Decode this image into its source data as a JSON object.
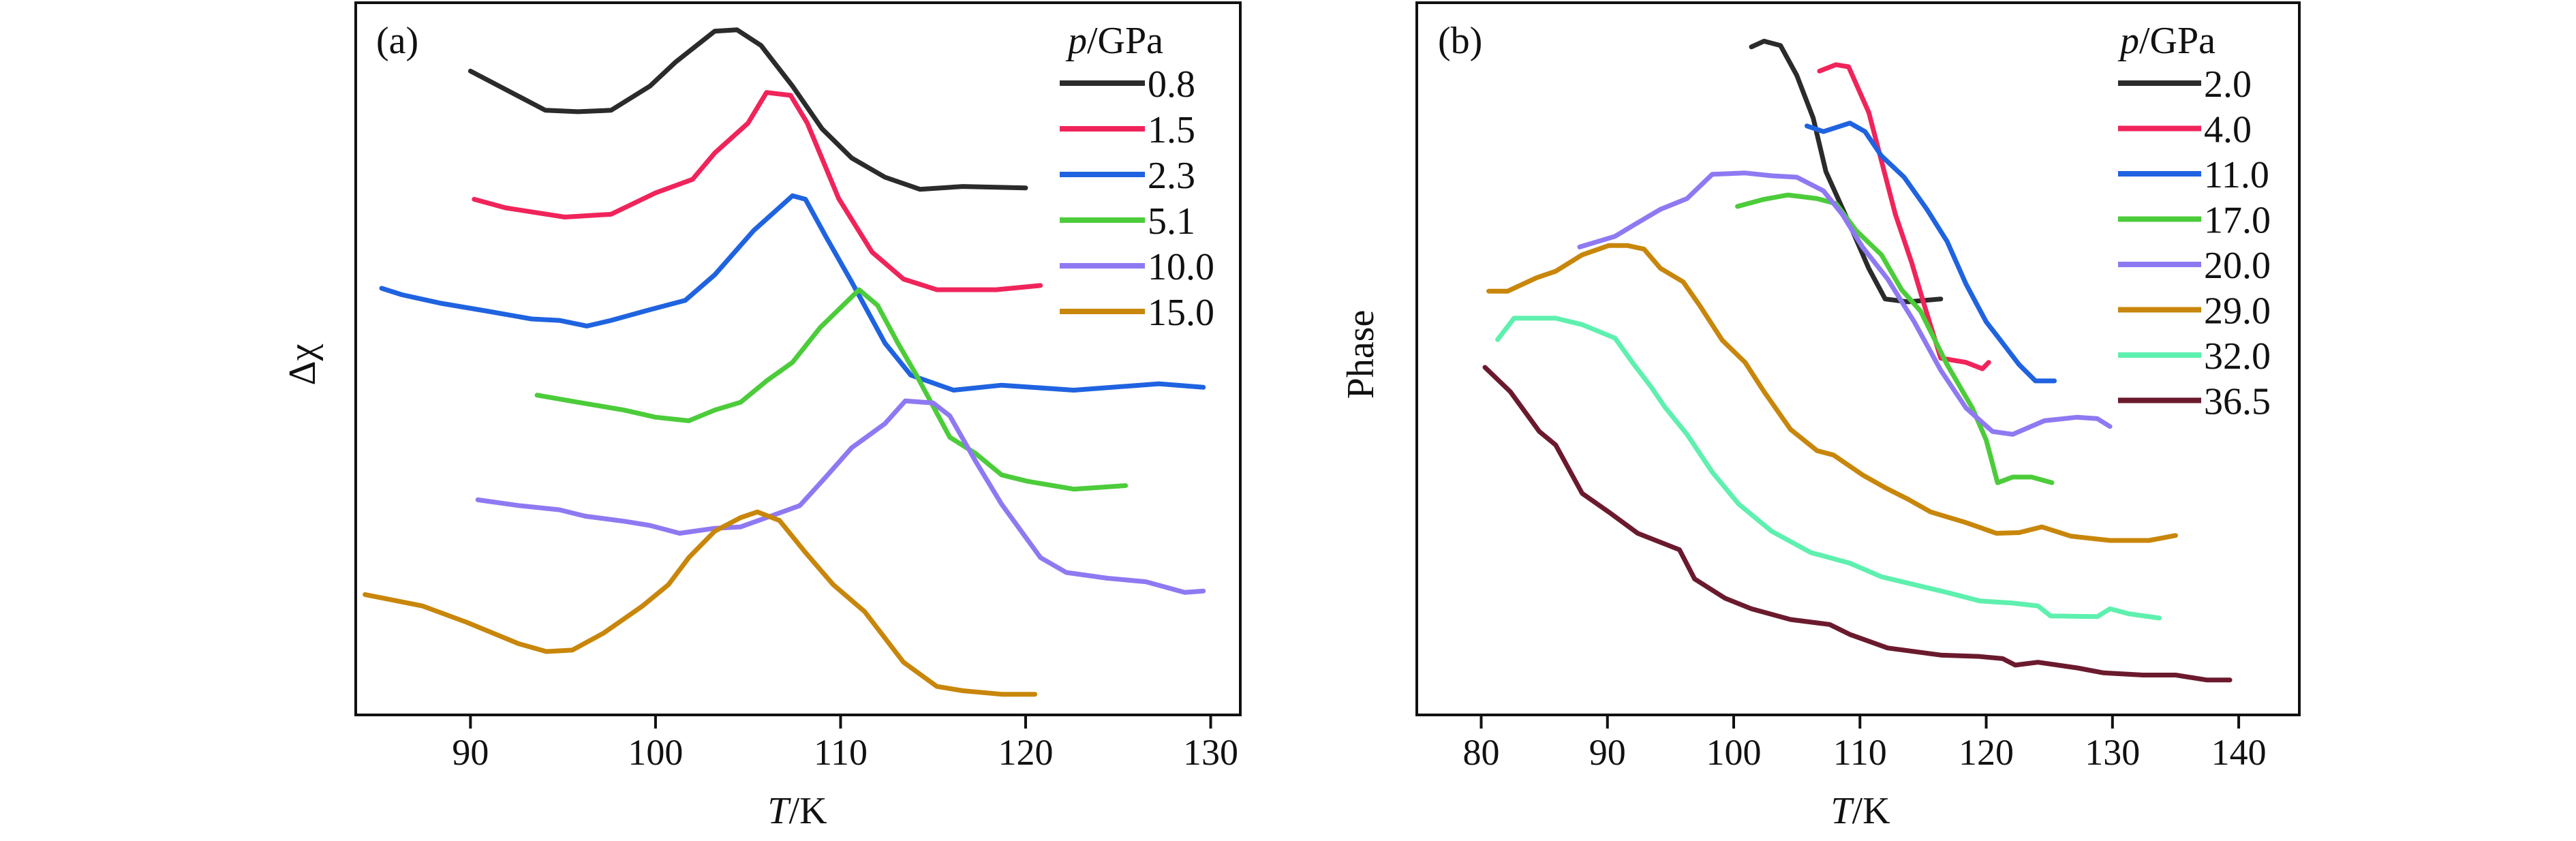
{
  "chart_data": [
    {
      "type": "line",
      "panel_label": "(a)",
      "xlabel_italic": "T",
      "xlabel_rest": "/K",
      "ylabel": "Δχ",
      "xlim": [
        83.8,
        131.6
      ],
      "ylim": [
        0,
        100
      ],
      "xticks": [
        90,
        100,
        110,
        120,
        130
      ],
      "grid": false,
      "legend": {
        "title_italic": "p",
        "title_rest": "/GPa",
        "placement": "top-right"
      },
      "series": [
        {
          "name": "0.8",
          "color": "#2b2b2b",
          "x": [
            90,
            94.05,
            95.8,
            97.6,
            99.7,
            101.1,
            103.2,
            104.4,
            105.7,
            107.4,
            109.0,
            110.6,
            112.4,
            114.3,
            116.6,
            120.0
          ],
          "y": [
            90.4,
            84.9,
            84.7,
            84.9,
            88.3,
            91.7,
            96.0,
            96.2,
            94.0,
            88.3,
            82.3,
            78.2,
            75.5,
            73.8,
            74.2,
            74.0
          ]
        },
        {
          "name": "1.5",
          "color": "#f0245a",
          "x": [
            90.2,
            91.9,
            95.1,
            97.6,
            100.0,
            102.0,
            103.2,
            105.0,
            106.0,
            107.3,
            108.2,
            109.9,
            111.7,
            113.4,
            115.2,
            118.4,
            120.8
          ],
          "y": [
            72.4,
            71.2,
            69.9,
            70.3,
            73.3,
            75.2,
            78.9,
            83.1,
            87.4,
            87.0,
            83.1,
            72.5,
            65.0,
            61.2,
            59.7,
            59.7,
            60.3
          ]
        },
        {
          "name": "2.3",
          "color": "#1f63e0",
          "x": [
            85.2,
            86.3,
            88.4,
            90.9,
            93.3,
            94.8,
            96.3,
            97.6,
            99.7,
            101.6,
            103.2,
            105.3,
            107.4,
            108.1,
            109.2,
            110.6,
            112.4,
            113.8,
            116.1,
            118.7,
            122.6,
            127.2,
            129.6
          ],
          "y": [
            59.9,
            59.0,
            57.8,
            56.7,
            55.6,
            55.4,
            54.6,
            55.4,
            56.9,
            58.2,
            61.8,
            68.0,
            72.9,
            72.4,
            67.2,
            60.8,
            52.2,
            47.7,
            45.6,
            46.3,
            45.6,
            46.5,
            46.0
          ]
        },
        {
          "name": "5.1",
          "color": "#4ccc3a",
          "x": [
            93.6,
            95.8,
            98.3,
            100.0,
            101.8,
            103.2,
            104.6,
            106.0,
            107.4,
            108.9,
            111.0,
            112.0,
            113.1,
            114.1,
            115.9,
            117.3,
            118.7,
            120.1,
            122.6,
            125.4
          ],
          "y": [
            44.9,
            43.9,
            42.8,
            41.8,
            41.3,
            42.8,
            43.9,
            46.9,
            49.5,
            54.4,
            59.7,
            57.5,
            52.2,
            47.7,
            39.0,
            36.7,
            33.7,
            32.8,
            31.7,
            32.2
          ]
        },
        {
          "name": "10.0",
          "color": "#8f79f2",
          "x": [
            90.4,
            92.6,
            94.8,
            96.2,
            98.3,
            99.7,
            101.3,
            103.2,
            104.6,
            106.0,
            107.8,
            109.2,
            110.6,
            112.4,
            113.5,
            115.0,
            115.9,
            117.3,
            118.7,
            120.8,
            122.2,
            124.4,
            126.5,
            128.6,
            129.6
          ],
          "y": [
            30.2,
            29.4,
            28.8,
            27.9,
            27.2,
            26.6,
            25.5,
            26.2,
            26.4,
            27.7,
            29.4,
            33.4,
            37.5,
            40.9,
            44.1,
            43.8,
            42.0,
            35.6,
            29.6,
            22.1,
            20.0,
            19.2,
            18.7,
            17.2,
            17.4
          ]
        },
        {
          "name": "15.0",
          "color": "#c8860a",
          "x": [
            84.3,
            87.4,
            89.8,
            92.6,
            94.1,
            95.5,
            97.2,
            99.3,
            100.7,
            101.8,
            103.2,
            104.6,
            105.5,
            106.7,
            108.1,
            109.6,
            111.3,
            113.4,
            115.2,
            116.6,
            118.7,
            120.5
          ],
          "y": [
            16.9,
            15.3,
            13.0,
            10.0,
            8.9,
            9.1,
            11.5,
            15.3,
            18.3,
            22.1,
            25.8,
            27.7,
            28.5,
            27.3,
            22.8,
            18.3,
            14.5,
            7.4,
            4.0,
            3.4,
            2.9,
            2.9
          ]
        }
      ]
    },
    {
      "type": "line",
      "panel_label": "(b)",
      "xlabel_italic": "T",
      "xlabel_rest": "/K",
      "ylabel": "Phase",
      "xlim": [
        74.9,
        144.8
      ],
      "ylim": [
        0,
        100
      ],
      "xticks": [
        80,
        90,
        100,
        110,
        120,
        130,
        140
      ],
      "grid": false,
      "legend": {
        "title_italic": "p",
        "title_rest": "/GPa",
        "placement": "top-right"
      },
      "series": [
        {
          "name": "2.0",
          "color": "#2b2b2b",
          "x": [
            101.4,
            102.4,
            103.7,
            105.0,
            106.3,
            107.3,
            109.2,
            110.7,
            112.0,
            113.8,
            116.4
          ],
          "y": [
            93.8,
            94.6,
            94.0,
            89.8,
            83.8,
            76.3,
            68.8,
            62.7,
            58.4,
            58.0,
            58.4
          ]
        },
        {
          "name": "4.0",
          "color": "#f0245a",
          "x": [
            106.8,
            108.1,
            109.1,
            110.7,
            111.7,
            112.8,
            114.1,
            115.1,
            116.4,
            118.4,
            119.7,
            120.2
          ],
          "y": [
            90.4,
            91.3,
            91.0,
            84.6,
            77.8,
            70.3,
            63.5,
            57.5,
            50.1,
            49.5,
            48.6,
            49.5
          ]
        },
        {
          "name": "11.0",
          "color": "#1f63e0",
          "x": [
            105.8,
            107.1,
            109.2,
            110.4,
            111.7,
            113.5,
            115.3,
            116.9,
            118.4,
            120.0,
            121.0,
            122.6,
            123.9,
            125.4
          ],
          "y": [
            82.7,
            81.9,
            83.1,
            81.9,
            78.5,
            75.5,
            71.0,
            66.5,
            60.5,
            55.2,
            52.9,
            49.2,
            46.9,
            46.9
          ]
        },
        {
          "name": "17.0",
          "color": "#4ccc3a",
          "x": [
            100.3,
            102.4,
            104.3,
            106.6,
            108.1,
            109.7,
            111.7,
            113.3,
            114.8,
            116.9,
            118.9,
            120.0,
            120.9,
            122.1,
            123.6,
            125.2
          ],
          "y": [
            71.4,
            72.4,
            73.0,
            72.5,
            71.8,
            68.0,
            64.6,
            59.7,
            56.7,
            49.2,
            43.1,
            38.6,
            32.6,
            33.4,
            33.4,
            32.6
          ]
        },
        {
          "name": "20.0",
          "color": "#8f79f2",
          "x": [
            87.8,
            90.6,
            92.1,
            94.2,
            96.3,
            98.3,
            100.9,
            103.0,
            105.0,
            107.1,
            108.6,
            110.2,
            112.2,
            114.3,
            116.4,
            118.4,
            120.5,
            122.1,
            124.6,
            127.2,
            128.8,
            129.8
          ],
          "y": [
            65.7,
            67.2,
            68.8,
            71.0,
            72.5,
            75.9,
            76.1,
            75.7,
            75.5,
            73.6,
            70.3,
            65.7,
            61.2,
            55.2,
            48.4,
            43.1,
            39.8,
            39.4,
            41.3,
            41.8,
            41.6,
            40.5
          ]
        },
        {
          "name": "29.0",
          "color": "#c8860a",
          "x": [
            80.6,
            82.1,
            84.4,
            85.9,
            88.0,
            90.1,
            91.6,
            92.9,
            94.2,
            96.0,
            97.3,
            99.1,
            100.9,
            102.4,
            104.5,
            106.6,
            107.9,
            110.2,
            112.0,
            113.8,
            115.6,
            118.4,
            120.8,
            122.6,
            124.4,
            126.7,
            129.8,
            132.9,
            135.0
          ],
          "y": [
            59.5,
            59.5,
            61.4,
            62.3,
            64.6,
            65.9,
            65.9,
            65.4,
            62.7,
            60.8,
            57.5,
            52.6,
            49.5,
            45.4,
            40.1,
            37.1,
            36.5,
            33.7,
            31.9,
            30.3,
            28.5,
            27.0,
            25.5,
            25.6,
            26.4,
            25.1,
            24.5,
            24.5,
            25.2
          ]
        },
        {
          "name": "32.0",
          "color": "#5ef0ae",
          "x": [
            81.3,
            82.6,
            85.9,
            88.0,
            90.6,
            92.1,
            93.4,
            94.6,
            96.3,
            98.3,
            100.4,
            103.0,
            106.1,
            109.2,
            111.7,
            114.3,
            116.9,
            119.5,
            122.1,
            124.1,
            125.1,
            128.8,
            129.8,
            131.3,
            133.7
          ],
          "y": [
            52.7,
            55.7,
            55.7,
            54.8,
            52.9,
            49.2,
            46.2,
            43.1,
            39.4,
            34.1,
            29.6,
            25.8,
            22.8,
            21.3,
            19.4,
            18.3,
            17.2,
            16.0,
            15.7,
            15.3,
            13.9,
            13.8,
            14.9,
            14.2,
            13.6
          ]
        },
        {
          "name": "36.5",
          "color": "#6b1a2e",
          "x": [
            80.3,
            82.3,
            84.6,
            85.9,
            88.0,
            90.1,
            92.4,
            95.7,
            96.9,
            99.3,
            101.4,
            104.5,
            107.6,
            109.2,
            112.2,
            116.4,
            119.5,
            121.3,
            122.3,
            124.1,
            127.2,
            129.3,
            132.4,
            135.0,
            137.5,
            139.3
          ],
          "y": [
            48.8,
            45.4,
            39.8,
            37.9,
            31.1,
            28.5,
            25.5,
            23.2,
            19.1,
            16.4,
            14.9,
            13.4,
            12.7,
            11.3,
            9.4,
            8.4,
            8.2,
            7.9,
            7.0,
            7.4,
            6.6,
            5.9,
            5.6,
            5.6,
            4.9,
            4.9
          ]
        }
      ]
    }
  ]
}
